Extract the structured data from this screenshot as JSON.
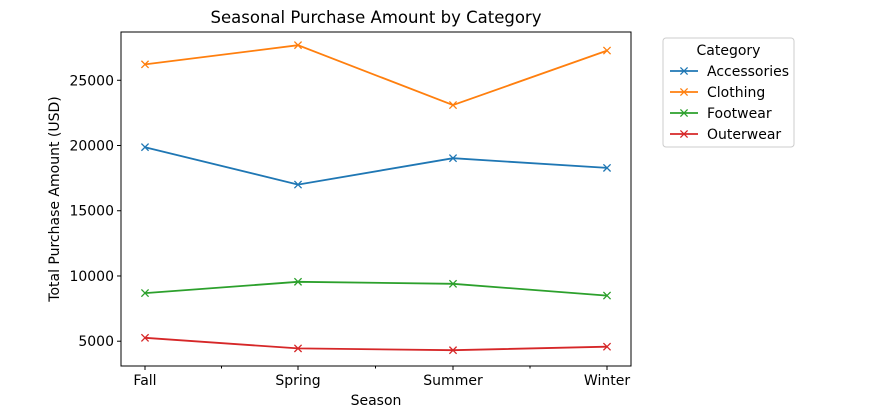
{
  "chart_data": {
    "type": "line",
    "title": "Seasonal Purchase Amount by Category",
    "xlabel": "Season",
    "ylabel": "Total Purchase Amount (USD)",
    "categories": [
      "Fall",
      "Spring",
      "Summer",
      "Winter"
    ],
    "ylim": [
      3100,
      28700
    ],
    "yticks": [
      5000,
      10000,
      15000,
      20000,
      25000
    ],
    "marker": "x",
    "grid": false,
    "legend": {
      "title": "Category",
      "placement": "outside-top-right"
    },
    "series": [
      {
        "name": "Accessories",
        "color": "#1f77b4",
        "values": [
          19874,
          17007,
          19029,
          18284
        ]
      },
      {
        "name": "Clothing",
        "color": "#ff7f0e",
        "values": [
          26220,
          27692,
          23100,
          27277
        ]
      },
      {
        "name": "Footwear",
        "color": "#2ca02c",
        "values": [
          8690,
          9555,
          9400,
          8498
        ]
      },
      {
        "name": "Outerwear",
        "color": "#d62728",
        "values": [
          5260,
          4450,
          4310,
          4580
        ]
      }
    ]
  }
}
